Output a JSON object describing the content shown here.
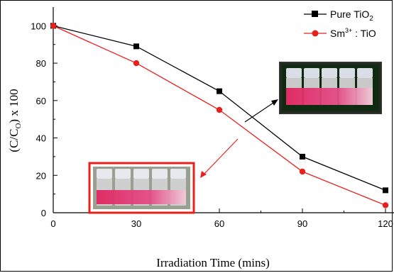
{
  "chart_data": {
    "type": "line",
    "x": [
      0,
      30,
      60,
      90,
      120
    ],
    "xlabel": "Irradiation Time (mins)",
    "ylabel": "(C/C",
    "ylabel_sub": "O",
    "ylabel_suffix": ") x 100",
    "xlim": [
      0,
      120
    ],
    "ylim": [
      0,
      110
    ],
    "xticks": [
      0,
      30,
      60,
      90,
      120
    ],
    "yticks": [
      0,
      20,
      40,
      60,
      80,
      100
    ],
    "legend_position": "top-right",
    "series": [
      {
        "name": "Pure TiO",
        "name_sub": "2",
        "color": "#000000",
        "marker": "square",
        "values": [
          100,
          89,
          65,
          30,
          12
        ]
      },
      {
        "name_prefix": "Sm",
        "name_sup": "3+",
        "name": " : TiO",
        "color": "#e8201c",
        "marker": "circle",
        "values": [
          100,
          80,
          55,
          22,
          4
        ]
      }
    ],
    "insets": [
      {
        "description": "photo of five vials with pink to clear solutions",
        "border": "#222222",
        "points_to_series": 0
      },
      {
        "description": "photo of five vials with pink to clear solutions",
        "border": "#e8201c",
        "points_to_series": 1
      }
    ]
  }
}
